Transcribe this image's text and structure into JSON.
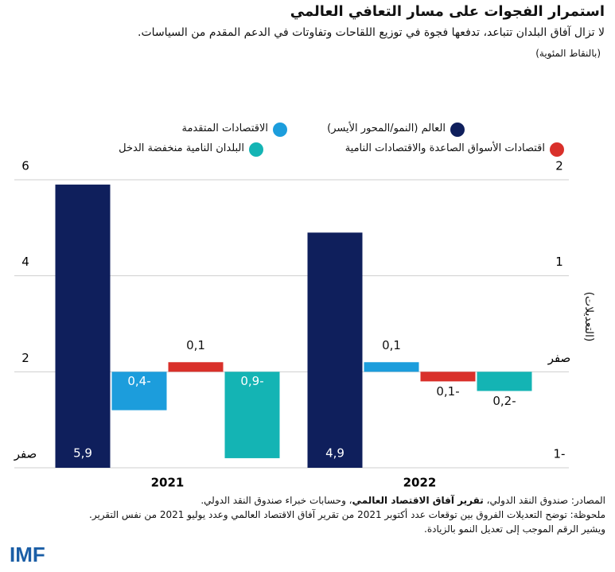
{
  "chart_data": {
    "type": "bar",
    "title": "استمرار الفجوات على مسار التعافي العالمي",
    "subtitle": "لا تزال آفاق البلدان تتباعد، تدفعها فجوة في توزيع اللقاحات وتفاوتات في الدعم المقدم من السياسات.",
    "unit_note": "(بالنقاط المئوية)",
    "categories": [
      "2021",
      "2022"
    ],
    "series": [
      {
        "name": "العالم (النمو/المحور الأيسر)",
        "color": "#0f1f5c",
        "axis": "y",
        "values": [
          5.9,
          4.9
        ],
        "value_labels": [
          "5,9",
          "4,9"
        ]
      },
      {
        "name": "الاقتصادات المتقدمة",
        "color": "#1c9ddc",
        "axis": "y2",
        "values": [
          -0.4,
          0.1
        ],
        "value_labels": [
          "0,4-",
          "0,1"
        ]
      },
      {
        "name": "اقتصادات الأسواق الصاعدة والاقتصادات النامية",
        "color": "#d9302a",
        "axis": "y2",
        "values": [
          0.1,
          -0.1
        ],
        "value_labels": [
          "0,1",
          "0,1-"
        ]
      },
      {
        "name": "البلدان النامية منخفضة الدخل",
        "color": "#14b4b4",
        "axis": "y2",
        "values": [
          -0.9,
          -0.2
        ],
        "value_labels": [
          "0,9-",
          "0,2-"
        ]
      }
    ],
    "ylim": [
      0,
      6
    ],
    "yticks": [
      {
        "value": 0,
        "label": "صفر"
      },
      2,
      4,
      6
    ],
    "y2lim": [
      -1,
      2
    ],
    "y2ticks": [
      {
        "value": -1,
        "label": "1-"
      },
      {
        "value": 0,
        "label": "صفر"
      },
      1,
      2
    ],
    "y2label": "(التعديلات)",
    "grid": true
  },
  "notes": {
    "source": [
      "المصادر: صندوق النقد الدولي، ",
      "تقرير آفاق الاقتصاد العالمي",
      "، وحسابات خبراء صندوق النقد الدولي."
    ],
    "note": [
      "ملحوظة: توضح التعديلات الفروق بين توقعات عدد أكتوبر 2021 من تقرير آفاق الاقتصاد العالمي وعدد يوليو 2021 من نفس التقرير.",
      "ويشير الرقم الموجب إلى تعديل النمو بالزيادة."
    ],
    "logo": "IMF"
  }
}
